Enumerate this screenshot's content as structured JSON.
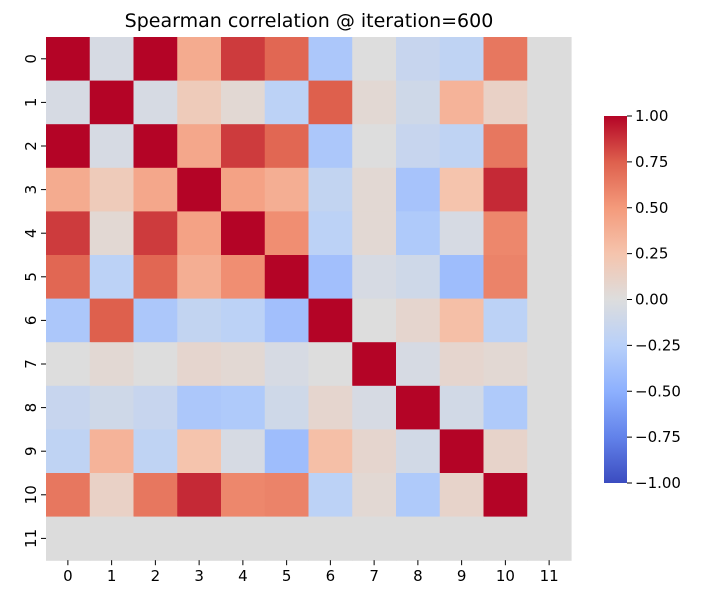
{
  "chart_data": {
    "type": "heatmap",
    "title": "Spearman correlation @ iteration=600",
    "x_labels": [
      "0",
      "1",
      "2",
      "3",
      "4",
      "5",
      "6",
      "7",
      "8",
      "9",
      "10",
      "11"
    ],
    "y_labels": [
      "0",
      "1",
      "2",
      "3",
      "4",
      "5",
      "6",
      "7",
      "8",
      "9",
      "10",
      "11"
    ],
    "values": [
      [
        1.0,
        -0.05,
        1.0,
        0.4,
        0.85,
        0.72,
        -0.32,
        0.0,
        -0.15,
        -0.2,
        0.65,
        null
      ],
      [
        -0.05,
        1.0,
        -0.05,
        0.18,
        0.05,
        -0.22,
        0.75,
        0.05,
        -0.1,
        0.35,
        0.12,
        null
      ],
      [
        1.0,
        -0.05,
        1.0,
        0.42,
        0.85,
        0.72,
        -0.32,
        0.0,
        -0.15,
        -0.2,
        0.65,
        null
      ],
      [
        0.4,
        0.18,
        0.42,
        1.0,
        0.45,
        0.38,
        -0.18,
        0.05,
        -0.35,
        0.25,
        0.9,
        null
      ],
      [
        0.85,
        0.05,
        0.85,
        0.45,
        1.0,
        0.55,
        -0.22,
        0.05,
        -0.3,
        -0.05,
        0.58,
        null
      ],
      [
        0.72,
        -0.22,
        0.72,
        0.38,
        0.55,
        1.0,
        -0.38,
        -0.05,
        -0.1,
        -0.4,
        0.6,
        null
      ],
      [
        -0.32,
        0.75,
        -0.32,
        -0.18,
        -0.22,
        -0.38,
        1.0,
        0.0,
        0.08,
        0.28,
        -0.22,
        null
      ],
      [
        0.0,
        0.05,
        0.0,
        0.08,
        0.05,
        -0.05,
        0.0,
        1.0,
        -0.05,
        0.08,
        0.05,
        null
      ],
      [
        -0.15,
        -0.1,
        -0.15,
        -0.32,
        -0.3,
        -0.1,
        0.08,
        -0.05,
        1.0,
        -0.08,
        -0.3,
        null
      ],
      [
        -0.2,
        0.35,
        -0.2,
        0.25,
        -0.05,
        -0.4,
        0.28,
        0.08,
        -0.08,
        1.0,
        0.1,
        null
      ],
      [
        0.65,
        0.12,
        0.65,
        0.9,
        0.58,
        0.6,
        -0.22,
        0.05,
        -0.3,
        0.1,
        1.0,
        null
      ],
      [
        null,
        null,
        null,
        null,
        null,
        null,
        null,
        null,
        null,
        null,
        null,
        null
      ]
    ],
    "nan_color": "#dcdcdc",
    "colorbar": {
      "min": -1.0,
      "max": 1.0,
      "ticks": [
        "1.00",
        "0.75",
        "0.50",
        "0.25",
        "0.00",
        "−0.25",
        "−0.50",
        "−0.75",
        "−1.00"
      ],
      "tick_values": [
        1.0,
        0.75,
        0.5,
        0.25,
        0.0,
        -0.25,
        -0.5,
        -0.75,
        -1.0
      ]
    },
    "colormap": "coolwarm",
    "grid": false,
    "legend": "colorbar-right"
  }
}
